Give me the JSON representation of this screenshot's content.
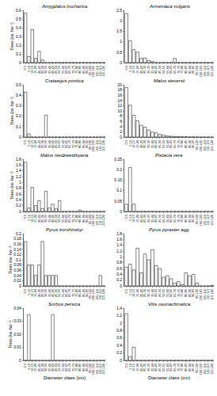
{
  "chart_data": [
    {
      "type": "bar",
      "title": "Amygdalus bucharica",
      "y_label": "Trees (no. ha⁻¹)",
      "categories": [
        "0-5",
        "5-10",
        "10-15",
        "15-20",
        "20-25",
        "25-30",
        "30-35",
        "35-40",
        "40-45",
        "45-50",
        "50-55",
        "55-60",
        "60-65",
        "65-70",
        "70-75",
        "75-80",
        "80-85",
        "85-90",
        "90-95",
        "95-100",
        "100-105",
        "105-110",
        "110-115",
        "115-120"
      ],
      "values": [
        0.57,
        0.07,
        0.38,
        0.05,
        0.13,
        0.03,
        0,
        0,
        0,
        0,
        0,
        0,
        0,
        0,
        0,
        0,
        0,
        0,
        0,
        0,
        0,
        0,
        0,
        0
      ],
      "color": "#ffffff",
      "ylim": [
        0,
        0.6
      ],
      "yticks": [
        0,
        0.1,
        0.2,
        0.3,
        0.4,
        0.5,
        0.6
      ]
    },
    {
      "type": "bar",
      "title": "Armeniaca vulgaris",
      "categories": [
        "0-5",
        "5-10",
        "10-15",
        "15-20",
        "20-25",
        "25-30",
        "30-35",
        "35-40",
        "40-45",
        "45-50",
        "50-55",
        "55-60",
        "60-65",
        "65-70",
        "70-75",
        "75-80",
        "80-85",
        "85-90",
        "90-95",
        "95-100",
        "100-105",
        "105-110",
        "110-115",
        "115-120"
      ],
      "values": [
        2.35,
        1.05,
        0.62,
        0.5,
        0.2,
        0.22,
        0.1,
        0.05,
        0,
        0,
        0,
        0,
        0,
        0.2,
        0,
        0,
        0,
        0,
        0,
        0,
        0,
        0,
        0,
        0
      ],
      "color": "#ffffff",
      "ylim": [
        0,
        2.5
      ],
      "yticks": [
        0,
        0.5,
        1,
        1.5,
        2,
        2.5
      ]
    },
    {
      "type": "bar",
      "title": "Crataegus pontica",
      "y_label": "Trees (no. ha⁻¹)",
      "categories": [
        "0-5",
        "5-10",
        "10-15",
        "15-20",
        "20-25",
        "25-30",
        "30-35",
        "35-40",
        "40-45",
        "45-50",
        "50-55",
        "55-60",
        "60-65",
        "65-70",
        "70-75",
        "75-80",
        "80-85",
        "85-90",
        "90-95",
        "95-100",
        "100-105",
        "105-110",
        "110-115",
        "115-120"
      ],
      "values": [
        0.43,
        0.03,
        0,
        0,
        0,
        0,
        0.21,
        0,
        0,
        0,
        0,
        0,
        0,
        0,
        0,
        0,
        0,
        0,
        0,
        0,
        0,
        0,
        0,
        0
      ],
      "color": "#ffffff",
      "ylim": [
        0,
        0.5
      ],
      "yticks": [
        0,
        0.1,
        0.2,
        0.3,
        0.4,
        0.5
      ]
    },
    {
      "type": "bar",
      "title": "Malus sieversii",
      "categories": [
        "0-5",
        "5-10",
        "10-15",
        "15-20",
        "20-25",
        "25-30",
        "30-35",
        "35-40",
        "40-45",
        "45-50",
        "50-55",
        "55-60",
        "60-65",
        "65-70",
        "70-75",
        "75-80",
        "80-85",
        "85-90",
        "90-95",
        "95-100",
        "100-105",
        "105-110",
        "110-115",
        "115-120"
      ],
      "values": [
        19,
        12.2,
        8.3,
        6.2,
        4.5,
        3.8,
        2.7,
        1.9,
        1.6,
        1,
        0.7,
        0.4,
        0.3,
        0.2,
        0.15,
        0.1,
        0.1,
        0.05,
        0.05,
        0.02,
        0.02,
        0,
        0,
        0
      ],
      "color": "#ffffff",
      "ylim": [
        0,
        20
      ],
      "yticks": [
        0,
        2,
        4,
        6,
        8,
        10,
        12,
        14,
        16,
        18,
        20
      ]
    },
    {
      "type": "bar",
      "title": "Malus niedzwetzkyana",
      "y_label": "Trees (no. ha⁻¹)",
      "categories": [
        "0-5",
        "5-10",
        "10-15",
        "15-20",
        "20-25",
        "25-30",
        "30-35",
        "35-40",
        "40-45",
        "45-50",
        "50-55",
        "55-60",
        "60-65",
        "65-70",
        "70-75",
        "75-80",
        "80-85",
        "85-90",
        "90-95",
        "95-100",
        "100-105",
        "105-110",
        "110-115",
        "115-120"
      ],
      "values": [
        1.7,
        0.12,
        0.83,
        0.2,
        0.37,
        0.1,
        0.7,
        0.12,
        0.25,
        0.1,
        0.37,
        0,
        0,
        0,
        0,
        0,
        0.05,
        0,
        0,
        0,
        0,
        0,
        0,
        0
      ],
      "color": "#ffffff",
      "ylim": [
        0,
        1.8
      ],
      "yticks": [
        0,
        0.2,
        0.4,
        0.6,
        0.8,
        1,
        1.2,
        1.4,
        1.6,
        1.8
      ]
    },
    {
      "type": "bar",
      "title": "Pistacia vera",
      "categories": [
        "0-5",
        "5-10",
        "10-15",
        "15-20",
        "20-25",
        "25-30",
        "30-35",
        "35-40",
        "40-45",
        "45-50",
        "50-55",
        "55-60",
        "60-65",
        "65-70",
        "70-75",
        "75-80",
        "80-85",
        "85-90",
        "90-95",
        "95-100",
        "100-105",
        "105-110",
        "110-115",
        "115-120"
      ],
      "values": [
        0.035,
        0.21,
        0.035,
        0,
        0,
        0,
        0,
        0,
        0,
        0,
        0,
        0,
        0,
        0,
        0,
        0,
        0,
        0,
        0,
        0,
        0,
        0,
        0,
        0
      ],
      "color": "#ffffff",
      "ylim": [
        0,
        0.25
      ],
      "yticks": [
        0,
        0.05,
        0.1,
        0.15,
        0.2,
        0.25
      ]
    },
    {
      "type": "bar",
      "title": "Pyrus korshinskyi",
      "y_label": "Trees (no. ha⁻¹)",
      "categories": [
        "0-5",
        "5-10",
        "10-15",
        "15-20",
        "20-25",
        "25-30",
        "30-35",
        "35-40",
        "40-45",
        "45-50",
        "50-55",
        "55-60",
        "60-65",
        "65-70",
        "70-75",
        "75-80",
        "80-85",
        "85-90",
        "90-95",
        "95-100",
        "100-105",
        "105-110",
        "110-115",
        "115-120"
      ],
      "values": [
        0.17,
        0.08,
        0.08,
        0.04,
        0.08,
        0.17,
        0.04,
        0.04,
        0.04,
        0.04,
        0,
        0,
        0,
        0,
        0,
        0,
        0,
        0,
        0,
        0,
        0,
        0,
        0.04,
        0
      ],
      "color": "#ffffff",
      "ylim": [
        0,
        0.2
      ],
      "yticks": [
        0,
        0.02,
        0.04,
        0.06,
        0.08,
        0.1,
        0.12,
        0.14,
        0.16,
        0.18,
        0.2
      ]
    },
    {
      "type": "bar",
      "title": "Pyrus pyraster agg.",
      "categories": [
        "0-5",
        "5-10",
        "10-15",
        "15-20",
        "20-25",
        "25-30",
        "30-35",
        "35-40",
        "40-45",
        "45-50",
        "50-55",
        "55-60",
        "60-65",
        "65-70",
        "70-75",
        "75-80",
        "80-85",
        "85-90",
        "90-95",
        "95-100",
        "100-105",
        "105-110",
        "110-115",
        "115-120"
      ],
      "values": [
        0.65,
        0.75,
        0.55,
        1.3,
        0.45,
        1.1,
        0.9,
        1.25,
        0.7,
        0.6,
        0.3,
        0.35,
        0.25,
        0.1,
        0.15,
        0.05,
        0.45,
        0.35,
        0.4,
        0.1,
        0,
        0,
        0,
        0.02
      ],
      "color": "#ffffff",
      "ylim": [
        0,
        1.8
      ],
      "yticks": [
        0,
        0.2,
        0.4,
        0.6,
        0.8,
        1,
        1.2,
        1.4,
        1.6,
        1.8
      ]
    },
    {
      "type": "bar",
      "title": "Sorbus persica",
      "y_label": "Trees (no. ha⁻¹)",
      "x_label": "Diameter class (cm)",
      "categories": [
        "0-5",
        "5-10",
        "10-15",
        "15-20",
        "20-25",
        "25-30",
        "30-35",
        "35-40",
        "40-45",
        "45-50",
        "50-55",
        "55-60",
        "60-65",
        "65-70",
        "70-75",
        "75-80",
        "80-85",
        "85-90",
        "90-95",
        "95-100",
        "100-105",
        "105-110",
        "110-115",
        "115-120"
      ],
      "values": [
        0,
        0.035,
        0,
        0,
        0,
        0,
        0,
        0,
        0.035,
        0,
        0,
        0,
        0,
        0,
        0,
        0,
        0,
        0,
        0,
        0,
        0,
        0,
        0,
        0
      ],
      "color": "#ffffff",
      "ylim": [
        0,
        0.04
      ],
      "yticks": [
        0,
        0.01,
        0.02,
        0.03,
        0.04
      ]
    },
    {
      "type": "bar",
      "title": "Vitis usunachmatica",
      "x_label": "Diameter class (cm)",
      "categories": [
        "0-5",
        "5-10",
        "10-15",
        "15-20",
        "20-25",
        "25-30",
        "30-35",
        "35-40",
        "40-45",
        "45-50",
        "50-55",
        "55-60",
        "60-65",
        "65-70",
        "70-75",
        "75-80",
        "80-85",
        "85-90",
        "90-95",
        "95-100",
        "100-105",
        "105-110",
        "110-115",
        "115-120"
      ],
      "values": [
        1.25,
        0.1,
        0.35,
        0,
        0,
        0,
        0,
        0,
        0,
        0,
        0,
        0,
        0,
        0,
        0,
        0,
        0,
        0,
        0,
        0,
        0,
        0,
        0,
        0
      ],
      "color": "#ffffff",
      "ylim": [
        0,
        1.4
      ],
      "yticks": [
        0,
        0.2,
        0.4,
        0.6,
        0.8,
        1,
        1.2,
        1.4
      ]
    }
  ]
}
